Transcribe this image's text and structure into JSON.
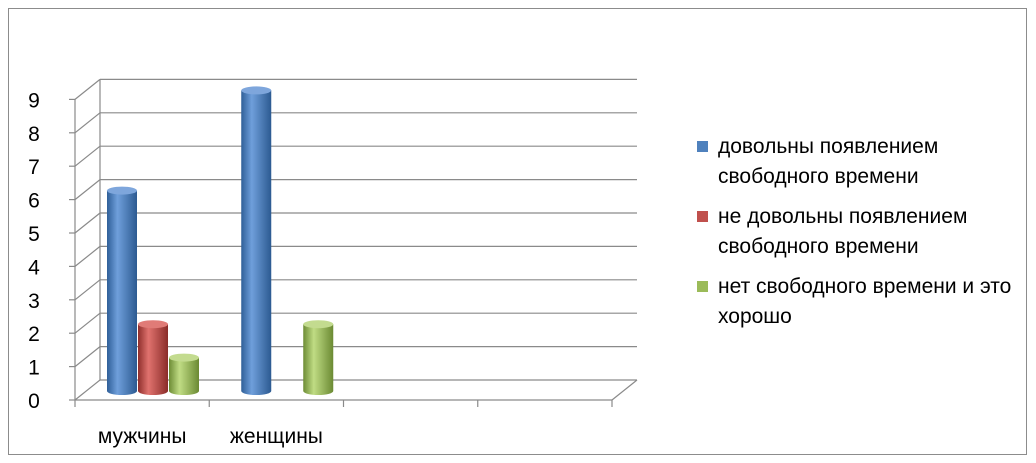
{
  "chart_data": {
    "type": "bar",
    "categories": [
      "мужчины",
      "женщины"
    ],
    "series": [
      {
        "name": "довольны появлением свободного времени",
        "values": [
          6,
          9
        ],
        "color": "#4f81bd"
      },
      {
        "name": "не довольны появлением свободного времени",
        "values": [
          2,
          0
        ],
        "color": "#c0504d"
      },
      {
        "name": "нет свободного времени и это хорошо",
        "values": [
          1,
          2
        ],
        "color": "#9bbb59"
      }
    ],
    "ylim": [
      0,
      9
    ],
    "yticks": [
      "0",
      "1",
      "2",
      "3",
      "4",
      "5",
      "6",
      "7",
      "8",
      "9"
    ],
    "grid": true,
    "legend_position": "right",
    "style": "3d-cylinder"
  }
}
